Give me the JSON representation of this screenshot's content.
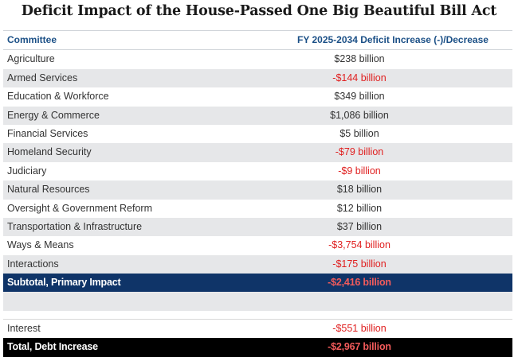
{
  "title": "Deficit Impact of the House-Passed One Big Beautiful Bill Act",
  "header": {
    "col1": "Committee",
    "col2": "FY 2025-2034 Deficit Increase (-)/Decrease"
  },
  "rows": [
    {
      "committee": "Agriculture",
      "value": "$238 billion"
    },
    {
      "committee": "Armed Services",
      "value": "-$144 billion"
    },
    {
      "committee": "Education & Workforce",
      "value": "$349 billion"
    },
    {
      "committee": "Energy & Commerce",
      "value": "$1,086 billion"
    },
    {
      "committee": "Financial Services",
      "value": "$5 billion"
    },
    {
      "committee": "Homeland Security",
      "value": "-$79 billion"
    },
    {
      "committee": "Judiciary",
      "value": "-$9 billion"
    },
    {
      "committee": "Natural Resources",
      "value": "$18 billion"
    },
    {
      "committee": "Oversight & Government Reform",
      "value": "$12 billion"
    },
    {
      "committee": "Transportation & Infrastructure",
      "value": "$37 billion"
    },
    {
      "committee": "Ways & Means",
      "value": "-$3,754 billion"
    },
    {
      "committee": "Interactions",
      "value": "-$175 billion"
    }
  ],
  "subtotal": {
    "label": "Subtotal, Primary Impact",
    "value": "-$2,416 billion"
  },
  "interest": {
    "label": "Interest",
    "value": "-$551 billion"
  },
  "total": {
    "label": "Total, Debt Increase",
    "value": "-$2,967 billion"
  },
  "colors": {
    "header_text": "#1a4f86",
    "negative": "#e02020",
    "subtotal_bg": "#0f3468",
    "total_bg": "#000000",
    "alt_row": "#e6e7e9"
  }
}
